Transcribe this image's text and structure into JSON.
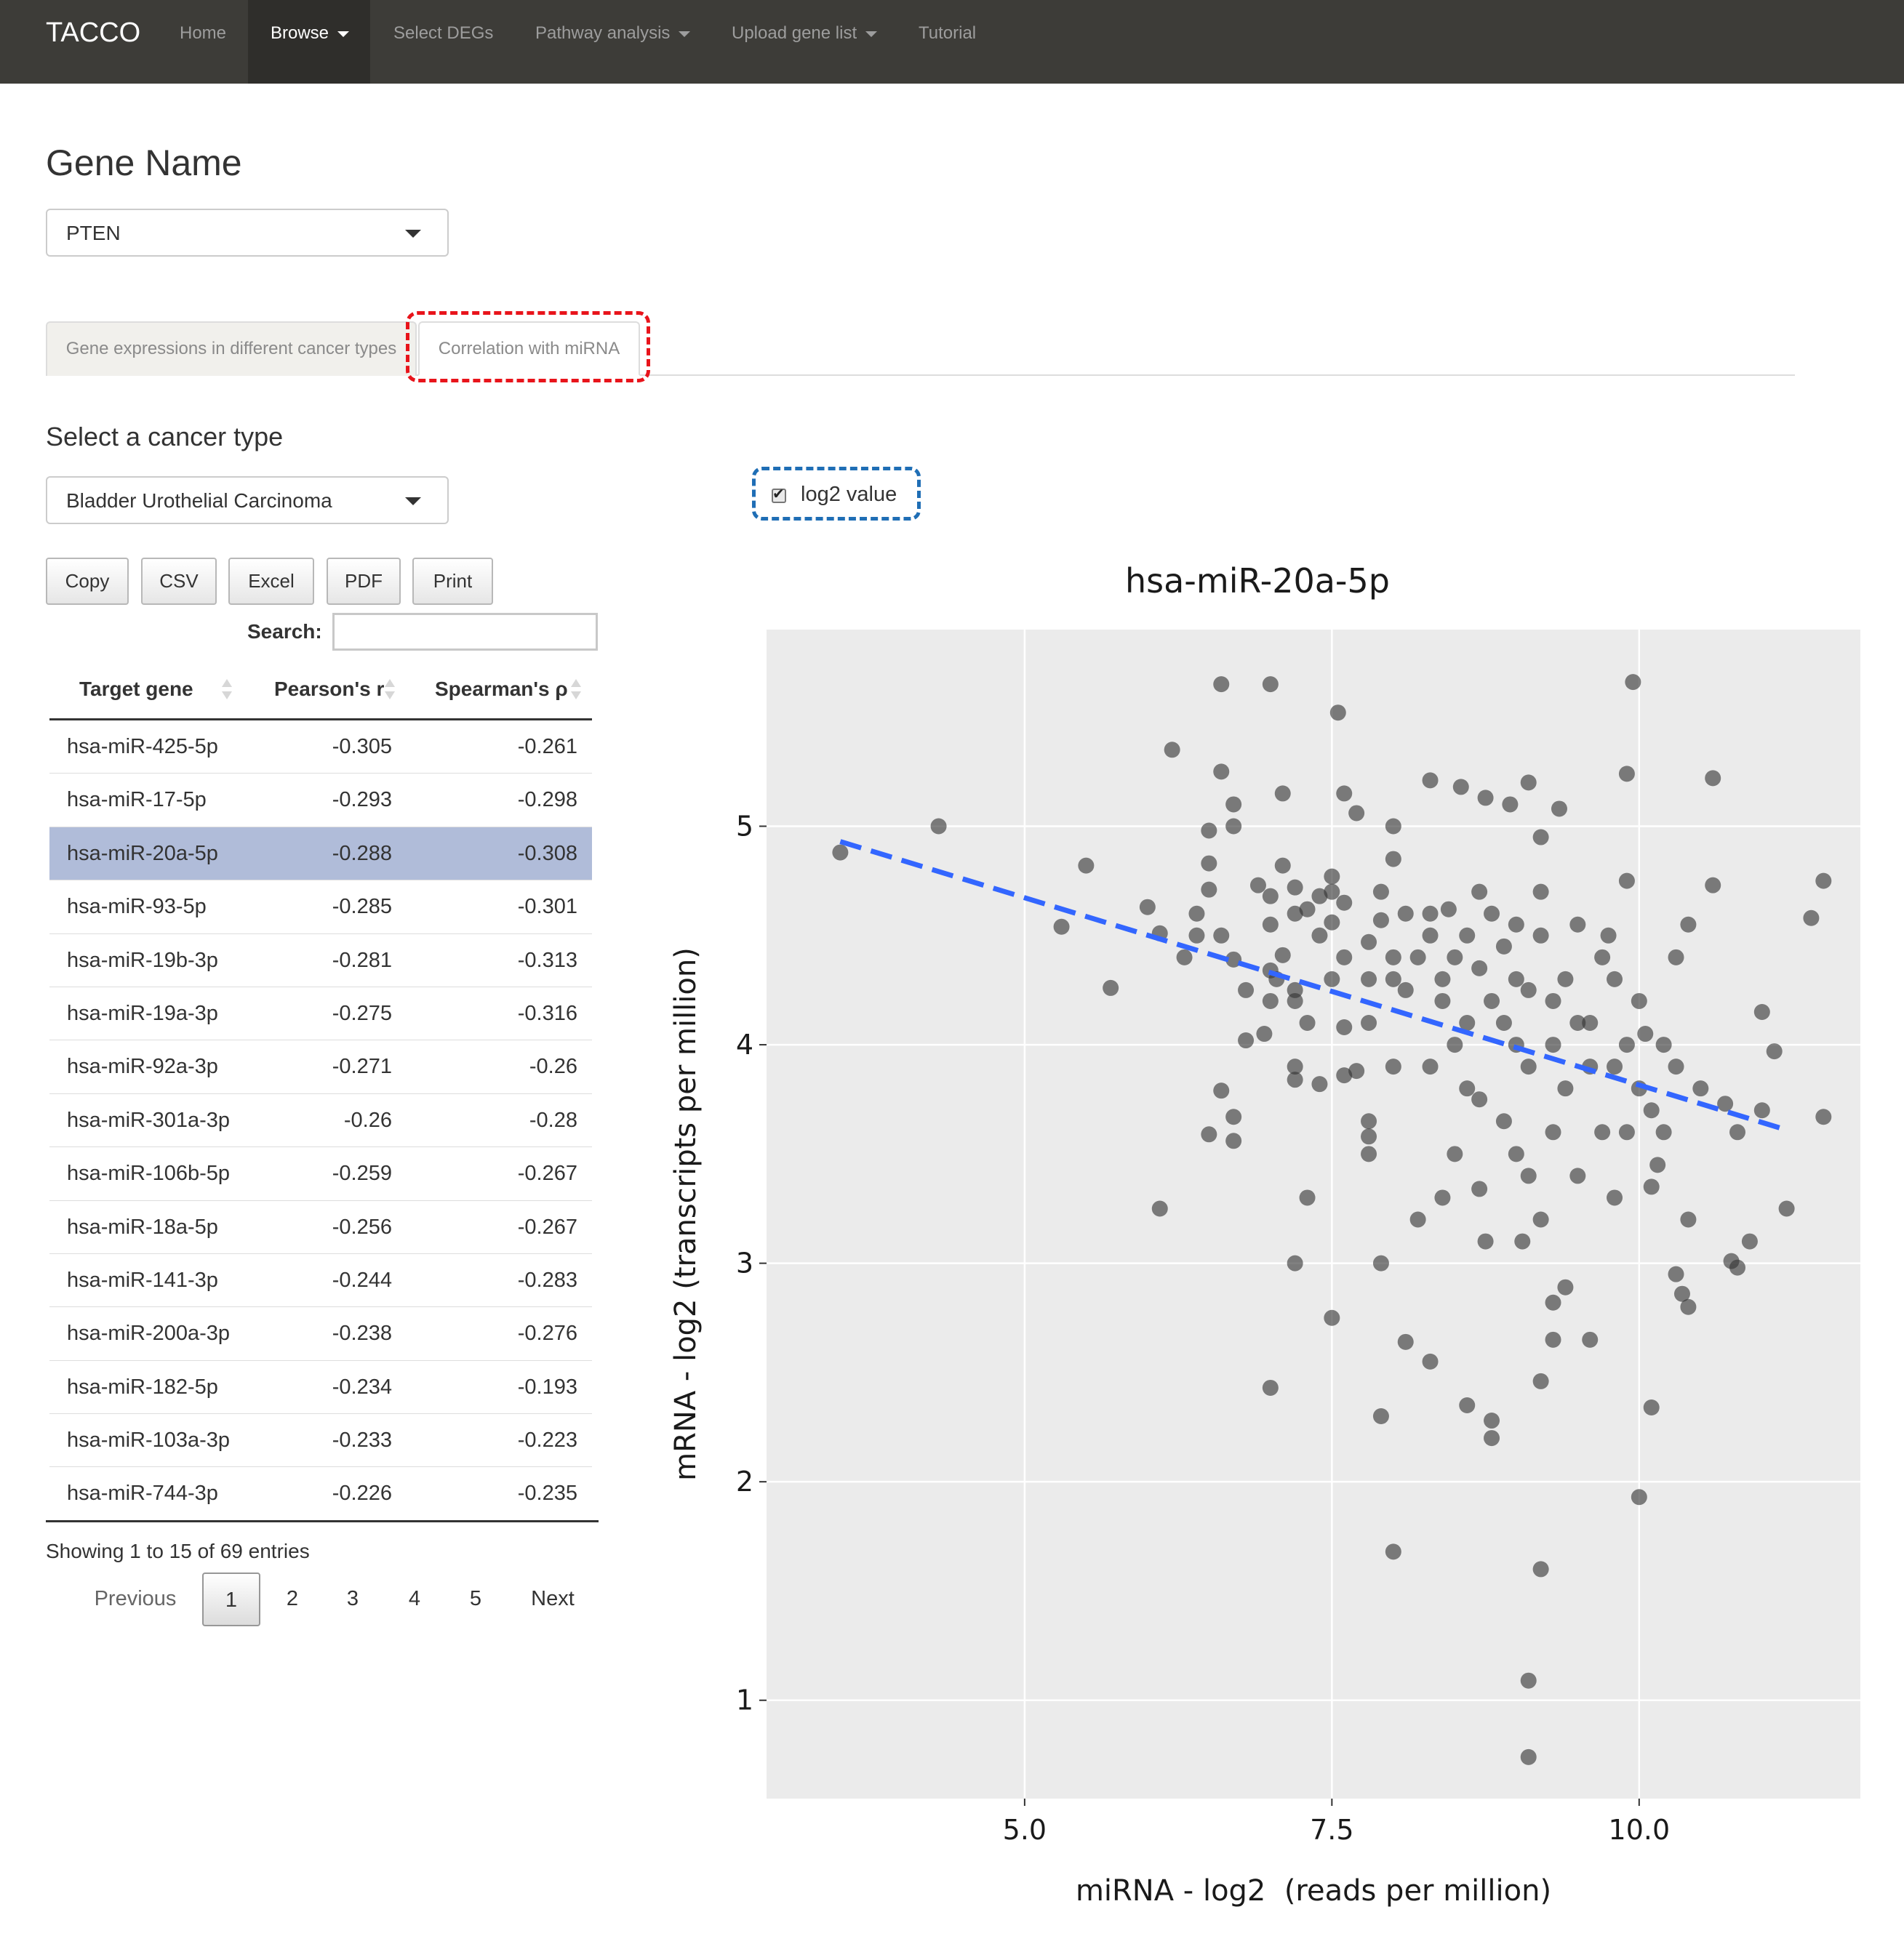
{
  "app": {
    "brand": "TACCO",
    "nav": [
      {
        "label": "Home",
        "dropdown": false,
        "active": false
      },
      {
        "label": "Browse",
        "dropdown": true,
        "active": true
      },
      {
        "label": "Select DEGs",
        "dropdown": false,
        "active": false
      },
      {
        "label": "Pathway analysis",
        "dropdown": true,
        "active": false
      },
      {
        "label": "Upload gene list",
        "dropdown": true,
        "active": false
      },
      {
        "label": "Tutorial",
        "dropdown": false,
        "active": false
      }
    ]
  },
  "page": {
    "title": "Gene Name",
    "gene_select": "PTEN",
    "tabs": [
      "Gene expressions in different cancer types",
      "Correlation with miRNA"
    ],
    "active_tab": 1,
    "cancer_label": "Select a cancer type",
    "cancer_select": "Bladder Urothelial Carcinoma"
  },
  "table": {
    "buttons": [
      "Copy",
      "CSV",
      "Excel",
      "PDF",
      "Print"
    ],
    "search_label": "Search:",
    "search_value": "",
    "columns": [
      "Target gene",
      "Pearson's r",
      "Spearman's ρ"
    ],
    "rows": [
      [
        "hsa-miR-425-5p",
        "-0.305",
        "-0.261"
      ],
      [
        "hsa-miR-17-5p",
        "-0.293",
        "-0.298"
      ],
      [
        "hsa-miR-20a-5p",
        "-0.288",
        "-0.308"
      ],
      [
        "hsa-miR-93-5p",
        "-0.285",
        "-0.301"
      ],
      [
        "hsa-miR-19b-3p",
        "-0.281",
        "-0.313"
      ],
      [
        "hsa-miR-19a-3p",
        "-0.275",
        "-0.316"
      ],
      [
        "hsa-miR-92a-3p",
        "-0.271",
        "-0.26"
      ],
      [
        "hsa-miR-301a-3p",
        "-0.26",
        "-0.28"
      ],
      [
        "hsa-miR-106b-5p",
        "-0.259",
        "-0.267"
      ],
      [
        "hsa-miR-18a-5p",
        "-0.256",
        "-0.267"
      ],
      [
        "hsa-miR-141-3p",
        "-0.244",
        "-0.283"
      ],
      [
        "hsa-miR-200a-3p",
        "-0.238",
        "-0.276"
      ],
      [
        "hsa-miR-182-5p",
        "-0.234",
        "-0.193"
      ],
      [
        "hsa-miR-103a-3p",
        "-0.233",
        "-0.223"
      ],
      [
        "hsa-miR-744-3p",
        "-0.226",
        "-0.235"
      ]
    ],
    "selected_row": 2,
    "info": "Showing 1 to 15 of 69 entries",
    "pagination": {
      "previous": "Previous",
      "pages": [
        "1",
        "2",
        "3",
        "4",
        "5"
      ],
      "current": "1",
      "next": "Next"
    }
  },
  "plot_options": {
    "log2_label": "log2 value",
    "log2_checked": true
  },
  "colors": {
    "navbar": "#3d3c38",
    "selected_row": "#b0bcd9",
    "panel_bg": "#ebebeb",
    "points": "#333333",
    "fit_line": "#3366ff",
    "highlight_red": "#e8141b",
    "highlight_blue": "#1f6eb5"
  },
  "chart_data": {
    "type": "scatter",
    "title": "hsa-miR-20a-5p",
    "xlabel": "miRNA - log2  (reads per million)",
    "ylabel": "mRNA - log2 (transcripts per million)",
    "xlim": [
      2.9,
      11.8
    ],
    "ylim": [
      0.55,
      5.9
    ],
    "xticks": [
      "5.0",
      "7.5",
      "10.0"
    ],
    "xtick_values": [
      5.0,
      7.5,
      10.0
    ],
    "yticks": [
      "1",
      "2",
      "3",
      "4",
      "5"
    ],
    "ytick_values": [
      1,
      2,
      3,
      4,
      5
    ],
    "grid": true,
    "trend": {
      "style": "dashed",
      "x": [
        3.5,
        11.2
      ],
      "y": [
        4.93,
        3.61
      ]
    },
    "points": [
      [
        3.5,
        4.88
      ],
      [
        4.3,
        5.0
      ],
      [
        5.5,
        4.82
      ],
      [
        5.3,
        4.54
      ],
      [
        5.7,
        4.26
      ],
      [
        6.0,
        4.63
      ],
      [
        6.1,
        3.25
      ],
      [
        6.1,
        4.51
      ],
      [
        6.2,
        5.35
      ],
      [
        6.3,
        4.4
      ],
      [
        6.4,
        4.6
      ],
      [
        6.4,
        4.5
      ],
      [
        6.5,
        4.98
      ],
      [
        6.5,
        4.83
      ],
      [
        6.5,
        4.71
      ],
      [
        6.6,
        4.5
      ],
      [
        6.6,
        5.65
      ],
      [
        6.6,
        5.25
      ],
      [
        6.7,
        5.1
      ],
      [
        6.7,
        5.0
      ],
      [
        6.7,
        4.39
      ],
      [
        6.8,
        4.25
      ],
      [
        6.8,
        4.02
      ],
      [
        6.9,
        4.73
      ],
      [
        6.5,
        3.59
      ],
      [
        6.6,
        3.79
      ],
      [
        6.7,
        3.56
      ],
      [
        6.7,
        3.67
      ],
      [
        7.0,
        4.34
      ],
      [
        7.0,
        4.2
      ],
      [
        7.0,
        4.68
      ],
      [
        7.0,
        4.55
      ],
      [
        7.1,
        4.82
      ],
      [
        7.1,
        4.41
      ],
      [
        7.1,
        5.15
      ],
      [
        7.2,
        4.6
      ],
      [
        7.2,
        4.72
      ],
      [
        7.2,
        4.2
      ],
      [
        7.2,
        3.84
      ],
      [
        7.2,
        3.9
      ],
      [
        7.3,
        4.1
      ],
      [
        7.3,
        3.3
      ],
      [
        7.3,
        4.62
      ],
      [
        7.4,
        4.68
      ],
      [
        7.4,
        4.5
      ],
      [
        7.4,
        3.82
      ],
      [
        7.5,
        4.77
      ],
      [
        7.5,
        4.7
      ],
      [
        7.5,
        4.56
      ],
      [
        7.5,
        4.3
      ],
      [
        7.6,
        4.65
      ],
      [
        7.6,
        4.4
      ],
      [
        7.6,
        4.08
      ],
      [
        7.6,
        3.86
      ],
      [
        7.6,
        5.15
      ],
      [
        7.7,
        5.06
      ],
      [
        7.7,
        3.88
      ],
      [
        7.8,
        4.3
      ],
      [
        7.8,
        4.1
      ],
      [
        7.8,
        3.5
      ],
      [
        7.8,
        3.58
      ],
      [
        7.8,
        3.65
      ],
      [
        7.9,
        4.57
      ],
      [
        7.9,
        4.7
      ],
      [
        8.0,
        5.0
      ],
      [
        8.0,
        4.4
      ],
      [
        8.0,
        4.3
      ],
      [
        8.0,
        3.9
      ],
      [
        8.0,
        4.85
      ],
      [
        8.1,
        4.6
      ],
      [
        8.1,
        4.25
      ],
      [
        8.2,
        4.4
      ],
      [
        8.2,
        3.2
      ],
      [
        8.3,
        4.5
      ],
      [
        8.3,
        4.6
      ],
      [
        8.3,
        3.9
      ],
      [
        8.4,
        4.3
      ],
      [
        8.4,
        4.2
      ],
      [
        8.4,
        3.3
      ],
      [
        8.5,
        3.5
      ],
      [
        8.5,
        4.0
      ],
      [
        8.5,
        4.4
      ],
      [
        8.6,
        4.5
      ],
      [
        8.6,
        4.1
      ],
      [
        8.6,
        3.8
      ],
      [
        8.7,
        4.35
      ],
      [
        8.7,
        3.75
      ],
      [
        8.7,
        4.7
      ],
      [
        8.7,
        3.34
      ],
      [
        8.8,
        4.6
      ],
      [
        8.8,
        4.2
      ],
      [
        8.9,
        4.1
      ],
      [
        8.9,
        3.65
      ],
      [
        9.0,
        4.3
      ],
      [
        9.0,
        4.55
      ],
      [
        9.0,
        3.5
      ],
      [
        9.0,
        4.0
      ],
      [
        9.1,
        4.25
      ],
      [
        9.1,
        3.4
      ],
      [
        9.1,
        3.9
      ],
      [
        9.2,
        4.5
      ],
      [
        9.2,
        4.7
      ],
      [
        9.3,
        4.0
      ],
      [
        9.3,
        3.6
      ],
      [
        9.3,
        4.2
      ],
      [
        9.4,
        4.3
      ],
      [
        9.4,
        3.8
      ],
      [
        9.5,
        4.1
      ],
      [
        9.5,
        3.4
      ],
      [
        9.5,
        4.55
      ],
      [
        9.6,
        3.9
      ],
      [
        9.7,
        4.4
      ],
      [
        9.7,
        3.6
      ],
      [
        9.8,
        3.9
      ],
      [
        9.8,
        4.3
      ],
      [
        9.8,
        3.3
      ],
      [
        9.9,
        4.0
      ],
      [
        9.9,
        4.75
      ],
      [
        9.9,
        3.6
      ],
      [
        10.0,
        4.2
      ],
      [
        10.0,
        3.8
      ],
      [
        10.1,
        3.7
      ],
      [
        10.1,
        3.35
      ],
      [
        10.2,
        4.0
      ],
      [
        10.2,
        3.6
      ],
      [
        10.3,
        4.4
      ],
      [
        10.3,
        3.9
      ],
      [
        10.4,
        3.2
      ],
      [
        10.4,
        4.55
      ],
      [
        10.5,
        3.8
      ],
      [
        10.6,
        4.73
      ],
      [
        10.7,
        3.73
      ],
      [
        10.8,
        3.6
      ],
      [
        10.9,
        3.1
      ],
      [
        11.0,
        4.15
      ],
      [
        11.0,
        3.7
      ],
      [
        11.1,
        3.97
      ],
      [
        11.2,
        3.25
      ],
      [
        11.4,
        4.58
      ],
      [
        11.5,
        4.75
      ],
      [
        11.5,
        3.67
      ],
      [
        10.6,
        5.22
      ],
      [
        9.9,
        5.24
      ],
      [
        9.95,
        5.66
      ],
      [
        7.0,
        5.65
      ],
      [
        7.55,
        5.52
      ],
      [
        7.8,
        4.47
      ],
      [
        8.3,
        5.21
      ],
      [
        9.1,
        5.2
      ],
      [
        8.75,
        5.13
      ],
      [
        8.55,
        5.18
      ],
      [
        8.95,
        5.1
      ],
      [
        9.2,
        4.95
      ],
      [
        9.35,
        5.08
      ],
      [
        7.05,
        4.3
      ],
      [
        7.2,
        4.25
      ],
      [
        8.45,
        4.62
      ],
      [
        8.9,
        4.45
      ],
      [
        9.6,
        4.1
      ],
      [
        9.75,
        4.5
      ],
      [
        10.05,
        4.05
      ],
      [
        10.15,
        3.45
      ],
      [
        6.95,
        4.05
      ],
      [
        7.2,
        3.0
      ],
      [
        7.0,
        2.43
      ],
      [
        7.9,
        3.0
      ],
      [
        8.1,
        2.64
      ],
      [
        7.9,
        2.3
      ],
      [
        8.0,
        1.68
      ],
      [
        8.8,
        2.2
      ],
      [
        8.8,
        2.28
      ],
      [
        9.1,
        1.09
      ],
      [
        9.1,
        0.74
      ],
      [
        9.2,
        1.6
      ],
      [
        9.3,
        2.65
      ],
      [
        9.2,
        2.46
      ],
      [
        9.3,
        2.82
      ],
      [
        9.6,
        2.65
      ],
      [
        10.0,
        1.93
      ],
      [
        10.1,
        2.34
      ],
      [
        10.3,
        2.95
      ],
      [
        10.35,
        2.86
      ],
      [
        10.4,
        2.8
      ],
      [
        10.75,
        3.01
      ],
      [
        10.8,
        2.98
      ],
      [
        9.4,
        2.89
      ],
      [
        8.75,
        3.1
      ],
      [
        9.05,
        3.1
      ],
      [
        9.2,
        3.2
      ],
      [
        7.5,
        2.75
      ],
      [
        8.3,
        2.55
      ],
      [
        8.6,
        2.35
      ]
    ]
  }
}
